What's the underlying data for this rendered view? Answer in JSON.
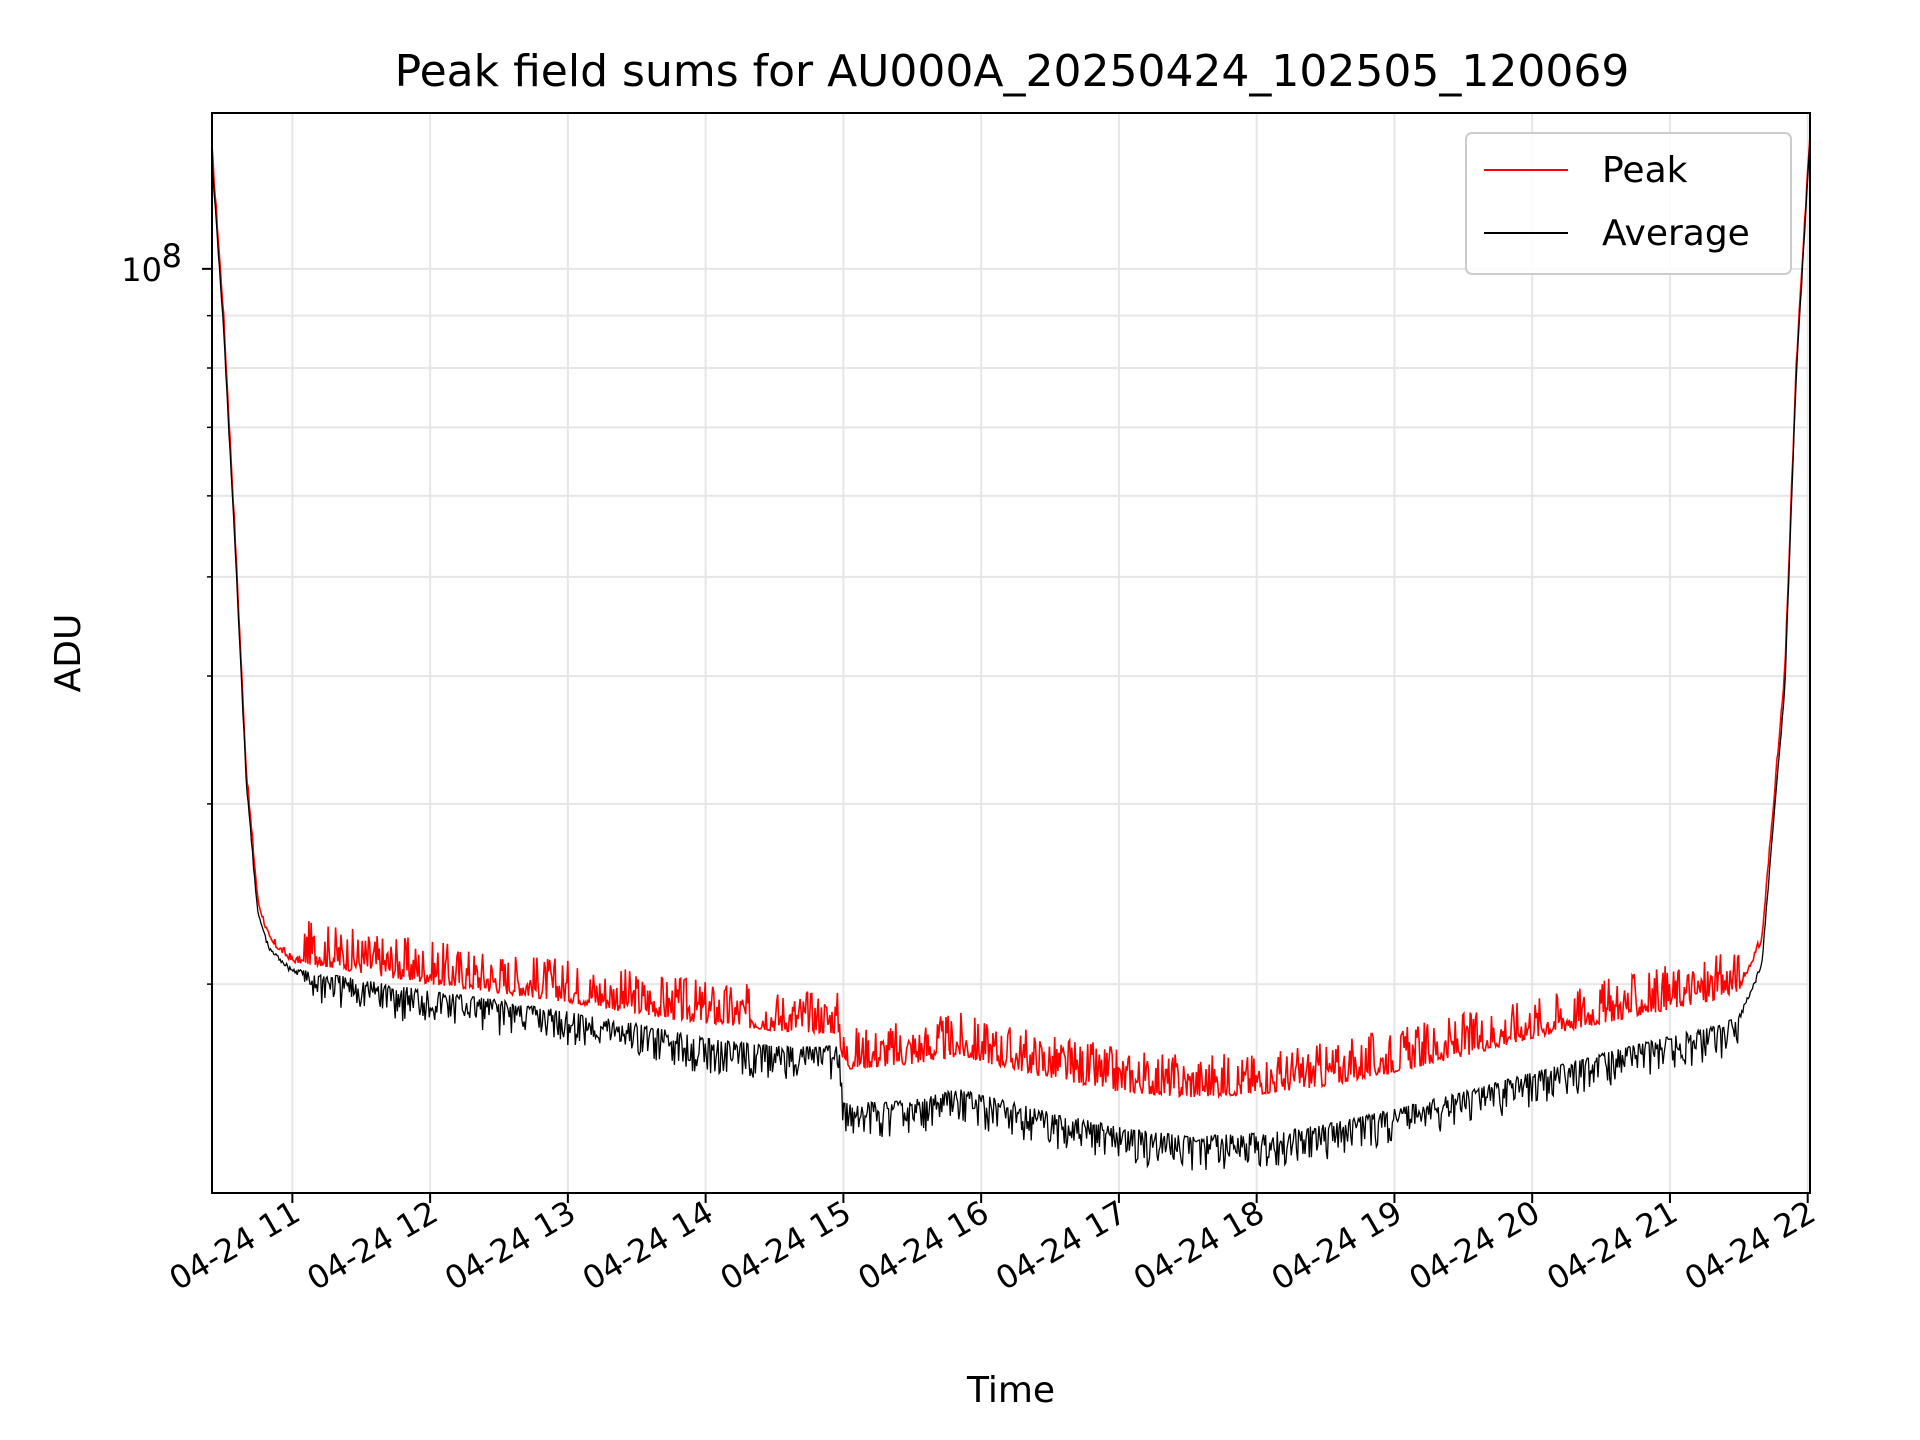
{
  "chart_data": {
    "type": "line",
    "title": "Peak field sums for AU000A_20250424_102505_120069",
    "xlabel": "Time",
    "ylabel": "ADU",
    "xlim": [
      "04-24 10:25",
      "04-24 22:01"
    ],
    "yscale": "log",
    "ylim": [
      12500000,
      142000000
    ],
    "grid": true,
    "legend_position": "top-right",
    "x_ticks": [
      "04-24 11",
      "04-24 12",
      "04-24 13",
      "04-24 14",
      "04-24 15",
      "04-24 16",
      "04-24 17",
      "04-24 18",
      "04-24 19",
      "04-24 20",
      "04-24 21",
      "04-24 22"
    ],
    "y_ticks": [
      {
        "value": 100000000,
        "base": "10",
        "exp": "8"
      }
    ],
    "series": [
      {
        "name": "Peak",
        "color": "#ff0000",
        "x": [
          "04-24 10:25",
          "04-24 10:30",
          "04-24 10:35",
          "04-24 10:40",
          "04-24 10:45",
          "04-24 10:50",
          "04-24 10:55",
          "04-24 11:00",
          "04-24 11:15",
          "04-24 11:30",
          "04-24 12:00",
          "04-24 12:30",
          "04-24 13:00",
          "04-24 13:30",
          "04-24 14:00",
          "04-24 14:30",
          "04-24 14:58",
          "04-24 15:00",
          "04-24 15:30",
          "04-24 15:50",
          "04-24 16:30",
          "04-24 17:00",
          "04-24 17:30",
          "04-24 18:00",
          "04-24 18:30",
          "04-24 19:00",
          "04-24 19:30",
          "04-24 20:00",
          "04-24 20:30",
          "04-24 21:00",
          "04-24 21:20",
          "04-24 21:30",
          "04-24 21:40",
          "04-24 21:50",
          "04-24 21:55",
          "04-24 22:01"
        ],
        "values": [
          130000000,
          90000000,
          55000000,
          32000000,
          24000000,
          22000000,
          21500000,
          21000000,
          20800000,
          20500000,
          20000000,
          19600000,
          19200000,
          18700000,
          18300000,
          18000000,
          17900000,
          16500000,
          16700000,
          17000000,
          16200000,
          15700000,
          15500000,
          15600000,
          15900000,
          16400000,
          17000000,
          17700000,
          18300000,
          18900000,
          19300000,
          19700000,
          22000000,
          40000000,
          80000000,
          135000000
        ]
      },
      {
        "name": "Average",
        "color": "#000000",
        "x": [
          "04-24 10:25",
          "04-24 10:30",
          "04-24 10:35",
          "04-24 10:40",
          "04-24 10:45",
          "04-24 10:50",
          "04-24 10:55",
          "04-24 11:00",
          "04-24 11:15",
          "04-24 11:30",
          "04-24 12:00",
          "04-24 12:30",
          "04-24 13:00",
          "04-24 13:30",
          "04-24 14:00",
          "04-24 14:30",
          "04-24 14:58",
          "04-24 15:00",
          "04-24 15:30",
          "04-24 15:50",
          "04-24 16:30",
          "04-24 17:00",
          "04-24 17:30",
          "04-24 18:00",
          "04-24 18:30",
          "04-24 19:00",
          "04-24 19:30",
          "04-24 20:00",
          "04-24 20:30",
          "04-24 21:00",
          "04-24 21:20",
          "04-24 21:30",
          "04-24 21:40",
          "04-24 21:50",
          "04-24 21:55",
          "04-24 22:01"
        ],
        "values": [
          128000000,
          88000000,
          54000000,
          31500000,
          23500000,
          21700000,
          21200000,
          20700000,
          20500000,
          20200000,
          19700000,
          19300000,
          18800000,
          18300000,
          17700000,
          17400000,
          17400000,
          15300000,
          15400000,
          15800000,
          15000000,
          14500000,
          14200000,
          14300000,
          14600000,
          15100000,
          15700000,
          16400000,
          17100000,
          17800000,
          18200000,
          18600000,
          21000000,
          39000000,
          79000000,
          134000000
        ]
      }
    ]
  }
}
